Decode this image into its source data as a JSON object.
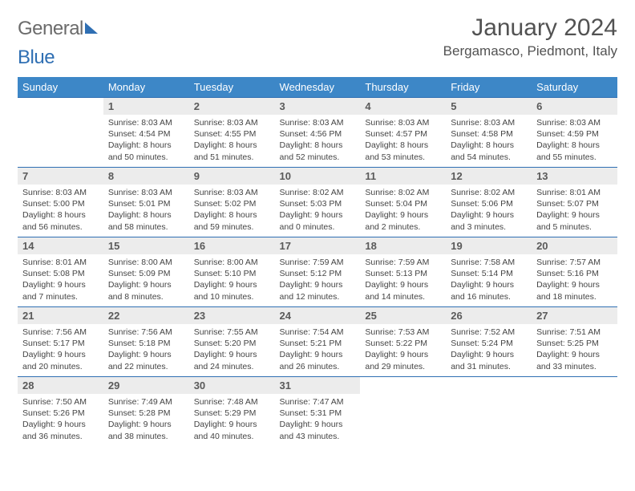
{
  "logo": {
    "text1": "General",
    "text2": "Blue"
  },
  "title": "January 2024",
  "location": "Bergamasco, Piedmont, Italy",
  "colors": {
    "header_bg": "#3d87c7",
    "header_text": "#ffffff",
    "rule": "#2f6fb3",
    "daynum_bg": "#ececec",
    "text": "#444444",
    "title_text": "#525252"
  },
  "weekdays": [
    "Sunday",
    "Monday",
    "Tuesday",
    "Wednesday",
    "Thursday",
    "Friday",
    "Saturday"
  ],
  "leading_blanks": 1,
  "days": [
    {
      "n": 1,
      "sunrise": "8:03 AM",
      "sunset": "4:54 PM",
      "dl": "8 hours and 50 minutes."
    },
    {
      "n": 2,
      "sunrise": "8:03 AM",
      "sunset": "4:55 PM",
      "dl": "8 hours and 51 minutes."
    },
    {
      "n": 3,
      "sunrise": "8:03 AM",
      "sunset": "4:56 PM",
      "dl": "8 hours and 52 minutes."
    },
    {
      "n": 4,
      "sunrise": "8:03 AM",
      "sunset": "4:57 PM",
      "dl": "8 hours and 53 minutes."
    },
    {
      "n": 5,
      "sunrise": "8:03 AM",
      "sunset": "4:58 PM",
      "dl": "8 hours and 54 minutes."
    },
    {
      "n": 6,
      "sunrise": "8:03 AM",
      "sunset": "4:59 PM",
      "dl": "8 hours and 55 minutes."
    },
    {
      "n": 7,
      "sunrise": "8:03 AM",
      "sunset": "5:00 PM",
      "dl": "8 hours and 56 minutes."
    },
    {
      "n": 8,
      "sunrise": "8:03 AM",
      "sunset": "5:01 PM",
      "dl": "8 hours and 58 minutes."
    },
    {
      "n": 9,
      "sunrise": "8:03 AM",
      "sunset": "5:02 PM",
      "dl": "8 hours and 59 minutes."
    },
    {
      "n": 10,
      "sunrise": "8:02 AM",
      "sunset": "5:03 PM",
      "dl": "9 hours and 0 minutes."
    },
    {
      "n": 11,
      "sunrise": "8:02 AM",
      "sunset": "5:04 PM",
      "dl": "9 hours and 2 minutes."
    },
    {
      "n": 12,
      "sunrise": "8:02 AM",
      "sunset": "5:06 PM",
      "dl": "9 hours and 3 minutes."
    },
    {
      "n": 13,
      "sunrise": "8:01 AM",
      "sunset": "5:07 PM",
      "dl": "9 hours and 5 minutes."
    },
    {
      "n": 14,
      "sunrise": "8:01 AM",
      "sunset": "5:08 PM",
      "dl": "9 hours and 7 minutes."
    },
    {
      "n": 15,
      "sunrise": "8:00 AM",
      "sunset": "5:09 PM",
      "dl": "9 hours and 8 minutes."
    },
    {
      "n": 16,
      "sunrise": "8:00 AM",
      "sunset": "5:10 PM",
      "dl": "9 hours and 10 minutes."
    },
    {
      "n": 17,
      "sunrise": "7:59 AM",
      "sunset": "5:12 PM",
      "dl": "9 hours and 12 minutes."
    },
    {
      "n": 18,
      "sunrise": "7:59 AM",
      "sunset": "5:13 PM",
      "dl": "9 hours and 14 minutes."
    },
    {
      "n": 19,
      "sunrise": "7:58 AM",
      "sunset": "5:14 PM",
      "dl": "9 hours and 16 minutes."
    },
    {
      "n": 20,
      "sunrise": "7:57 AM",
      "sunset": "5:16 PM",
      "dl": "9 hours and 18 minutes."
    },
    {
      "n": 21,
      "sunrise": "7:56 AM",
      "sunset": "5:17 PM",
      "dl": "9 hours and 20 minutes."
    },
    {
      "n": 22,
      "sunrise": "7:56 AM",
      "sunset": "5:18 PM",
      "dl": "9 hours and 22 minutes."
    },
    {
      "n": 23,
      "sunrise": "7:55 AM",
      "sunset": "5:20 PM",
      "dl": "9 hours and 24 minutes."
    },
    {
      "n": 24,
      "sunrise": "7:54 AM",
      "sunset": "5:21 PM",
      "dl": "9 hours and 26 minutes."
    },
    {
      "n": 25,
      "sunrise": "7:53 AM",
      "sunset": "5:22 PM",
      "dl": "9 hours and 29 minutes."
    },
    {
      "n": 26,
      "sunrise": "7:52 AM",
      "sunset": "5:24 PM",
      "dl": "9 hours and 31 minutes."
    },
    {
      "n": 27,
      "sunrise": "7:51 AM",
      "sunset": "5:25 PM",
      "dl": "9 hours and 33 minutes."
    },
    {
      "n": 28,
      "sunrise": "7:50 AM",
      "sunset": "5:26 PM",
      "dl": "9 hours and 36 minutes."
    },
    {
      "n": 29,
      "sunrise": "7:49 AM",
      "sunset": "5:28 PM",
      "dl": "9 hours and 38 minutes."
    },
    {
      "n": 30,
      "sunrise": "7:48 AM",
      "sunset": "5:29 PM",
      "dl": "9 hours and 40 minutes."
    },
    {
      "n": 31,
      "sunrise": "7:47 AM",
      "sunset": "5:31 PM",
      "dl": "9 hours and 43 minutes."
    }
  ],
  "labels": {
    "sunrise": "Sunrise:",
    "sunset": "Sunset:",
    "daylight": "Daylight:"
  }
}
